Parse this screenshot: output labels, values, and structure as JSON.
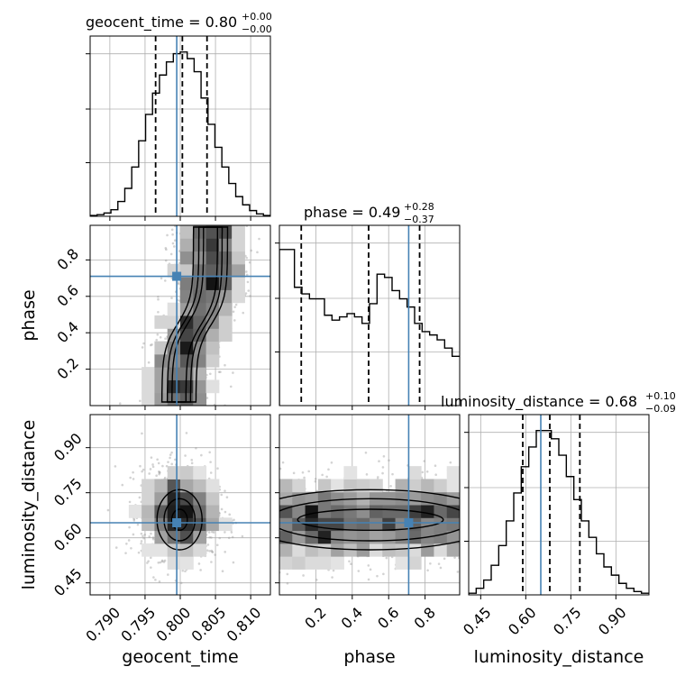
{
  "chart_data": {
    "type": "corner",
    "parameters": [
      "geocent_time",
      "phase",
      "luminosity_distance"
    ],
    "truths": {
      "geocent_time": 0.7995,
      "phase": 0.71,
      "luminosity_distance": 0.65
    },
    "colors": {
      "truth": "#4682b4",
      "hist": "#000000",
      "grid": "#b0b0b0",
      "points": "#9e9e9e"
    },
    "titles": [
      {
        "param": "geocent_time",
        "text": "geocent_time = 0.80",
        "plus": "+0.00",
        "minus": "−0.00"
      },
      {
        "param": "phase",
        "text": "phase = 0.49",
        "plus": "+0.28",
        "minus": "−0.37"
      },
      {
        "param": "luminosity_distance",
        "text": "luminosity_distance = 0.68",
        "plus": "+0.10",
        "minus": "−0.09"
      }
    ],
    "ranges": {
      "geocent_time": [
        0.7872,
        0.8128
      ],
      "phase": [
        0.0,
        0.99
      ],
      "luminosity_distance": [
        0.41,
        1.01
      ]
    },
    "ticks": {
      "geocent_time": {
        "values": [
          0.79,
          0.795,
          0.8,
          0.805,
          0.81
        ],
        "labels": [
          "0.790",
          "0.795",
          "0.800",
          "0.805",
          "0.810"
        ]
      },
      "phase_y": {
        "values": [
          0.2,
          0.4,
          0.6,
          0.8
        ],
        "labels": [
          "0.2",
          "0.4",
          "0.6",
          "0.8"
        ]
      },
      "phase_x": {
        "values": [
          0.2,
          0.4,
          0.6,
          0.8
        ],
        "labels": [
          "0.2",
          "0.4",
          "0.6",
          "0.8"
        ]
      },
      "luminosity_distance": {
        "values": [
          0.45,
          0.6,
          0.75,
          0.9
        ],
        "labels": [
          "0.45",
          "0.60",
          "0.75",
          "0.90"
        ]
      }
    },
    "quantiles": {
      "geocent_time": [
        0.7965,
        0.8003,
        0.8038
      ],
      "phase": [
        0.12,
        0.49,
        0.77
      ],
      "luminosity_distance": [
        0.59,
        0.68,
        0.78
      ]
    },
    "hist": {
      "geocent_time": [
        0.005,
        0.01,
        0.02,
        0.04,
        0.09,
        0.17,
        0.3,
        0.46,
        0.62,
        0.75,
        0.86,
        0.94,
        0.99,
        1.0,
        0.96,
        0.88,
        0.72,
        0.56,
        0.42,
        0.3,
        0.2,
        0.12,
        0.07,
        0.035,
        0.015,
        0.005
      ],
      "phase": [
        0.95,
        0.95,
        0.72,
        0.68,
        0.65,
        0.65,
        0.55,
        0.52,
        0.54,
        0.56,
        0.54,
        0.5,
        0.62,
        0.8,
        0.78,
        0.7,
        0.65,
        0.6,
        0.5,
        0.45,
        0.43,
        0.4,
        0.35,
        0.3
      ],
      "luminosity_distance": [
        0.01,
        0.04,
        0.09,
        0.18,
        0.3,
        0.45,
        0.62,
        0.78,
        0.9,
        1.0,
        1.0,
        0.95,
        0.85,
        0.72,
        0.58,
        0.45,
        0.35,
        0.25,
        0.17,
        0.12,
        0.07,
        0.04,
        0.02,
        0.01
      ]
    },
    "hist_max_fraction": 0.98,
    "scatter": {
      "geocent_time_vs_phase": {
        "x": "geocent_time",
        "y": "phase"
      },
      "geocent_time_vs_luminosity_distance": {
        "x": "geocent_time",
        "y": "luminosity_distance"
      },
      "phase_vs_luminosity_distance": {
        "x": "phase",
        "y": "luminosity_distance"
      }
    }
  }
}
